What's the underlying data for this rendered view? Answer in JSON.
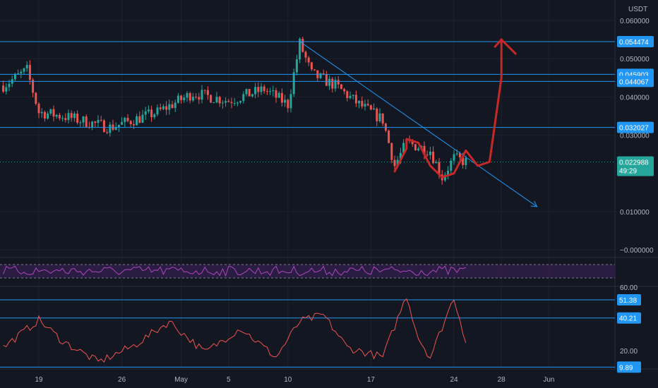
{
  "chart_data": [
    {
      "type": "line",
      "subtype": "candlestick",
      "currency": "USDT",
      "x_ticks": [
        "19",
        "26",
        "May",
        "5",
        "10",
        "17",
        "24",
        "28",
        "Jun"
      ],
      "y_ticks": [
        "0.060000",
        "0.050000",
        "0.040000",
        "0.030000",
        "0.010000",
        "−0.000000"
      ],
      "ylim": [
        -0.002,
        0.063
      ],
      "scale": "linear",
      "grid": true,
      "approx_close_path": [
        {
          "x": "Apr 16",
          "y": 0.043
        },
        {
          "x": "Apr 18",
          "y": 0.047
        },
        {
          "x": "Apr 19",
          "y": 0.036
        },
        {
          "x": "Apr 21",
          "y": 0.035
        },
        {
          "x": "Apr 25",
          "y": 0.032
        },
        {
          "x": "Apr 29",
          "y": 0.036
        },
        {
          "x": "May 2",
          "y": 0.041
        },
        {
          "x": "May 5",
          "y": 0.039
        },
        {
          "x": "May 8",
          "y": 0.042
        },
        {
          "x": "May 10",
          "y": 0.038
        },
        {
          "x": "May 11",
          "y": 0.054
        },
        {
          "x": "May 12",
          "y": 0.046
        },
        {
          "x": "May 14",
          "y": 0.043
        },
        {
          "x": "May 16",
          "y": 0.038
        },
        {
          "x": "May 18",
          "y": 0.034
        },
        {
          "x": "May 19",
          "y": 0.022
        },
        {
          "x": "May 20",
          "y": 0.028
        },
        {
          "x": "May 22",
          "y": 0.026
        },
        {
          "x": "May 23",
          "y": 0.019
        },
        {
          "x": "May 24",
          "y": 0.024
        },
        {
          "x": "May 25",
          "y": 0.023
        }
      ],
      "horizontal_levels": [
        {
          "label": "0.054474",
          "value": 0.054474
        },
        {
          "label": "0.045903",
          "value": 0.045903
        },
        {
          "label": "0.044067",
          "value": 0.044067
        },
        {
          "label": "0.032027",
          "value": 0.032027
        }
      ],
      "current_price": {
        "label": "0.022988",
        "countdown": "49:29",
        "value": 0.022988
      },
      "colors": {
        "up": "#26a69a",
        "down": "#ef5350",
        "level": "#2196f3",
        "price_badge": "#26a69a",
        "drawing": "#c62828"
      }
    },
    {
      "type": "line",
      "name": "",
      "color": "#ab47bc",
      "band_color": "#3c1f5a"
    },
    {
      "type": "line",
      "y_ticks": [
        "20.00"
      ],
      "ylim": [
        8,
        62
      ],
      "color": "#ef5350",
      "levels": [
        {
          "label": "51.38",
          "value": 51.38
        },
        {
          "label": "40.21",
          "value": 40.21
        },
        {
          "label": "9.89",
          "value": 9.89
        }
      ],
      "approx_values": [
        {
          "x": "Apr 16",
          "y": 22
        },
        {
          "x": "Apr 19",
          "y": 39
        },
        {
          "x": "Apr 21",
          "y": 26
        },
        {
          "x": "Apr 24",
          "y": 13
        },
        {
          "x": "Apr 27",
          "y": 23
        },
        {
          "x": "Apr 30",
          "y": 38
        },
        {
          "x": "May 3",
          "y": 19
        },
        {
          "x": "May 6",
          "y": 34
        },
        {
          "x": "May 9",
          "y": 16
        },
        {
          "x": "May 11",
          "y": 38
        },
        {
          "x": "May 13",
          "y": 42
        },
        {
          "x": "May 15",
          "y": 22
        },
        {
          "x": "May 18",
          "y": 16
        },
        {
          "x": "May 20",
          "y": 54
        },
        {
          "x": "May 21",
          "y": 28
        },
        {
          "x": "May 22",
          "y": 16
        },
        {
          "x": "May 24",
          "y": 53
        },
        {
          "x": "May 25",
          "y": 26
        }
      ]
    }
  ]
}
